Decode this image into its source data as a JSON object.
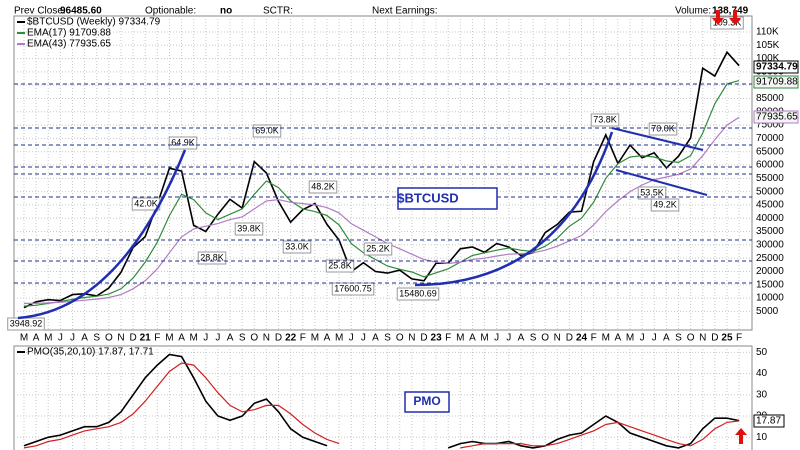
{
  "header": {
    "prev_close_label": "Prev Close:",
    "prev_close": "96485.60",
    "optionable_label": "Optionable:",
    "optionable": "no",
    "sctr_label": "SCTR:",
    "earnings_label": "Next Earnings:",
    "volume_label": "Volume:",
    "volume": "138,749"
  },
  "chart_data": [
    {
      "type": "line",
      "title": "$BTCUSD",
      "categories": [
        "M",
        "A",
        "M",
        "J",
        "J",
        "A",
        "S",
        "O",
        "N",
        "D",
        "21",
        "F",
        "M",
        "A",
        "M",
        "J",
        "J",
        "A",
        "S",
        "O",
        "N",
        "D",
        "22",
        "F",
        "M",
        "A",
        "M",
        "J",
        "J",
        "A",
        "S",
        "O",
        "N",
        "D",
        "23",
        "F",
        "M",
        "A",
        "M",
        "J",
        "J",
        "A",
        "S",
        "O",
        "N",
        "D",
        "24",
        "F",
        "M",
        "A",
        "M",
        "J",
        "J",
        "A",
        "S",
        "O",
        "N",
        "D",
        "25",
        "F"
      ],
      "series": [
        {
          "name": "$BTCUSD (Weekly) 97334.79",
          "tag": "97334.79",
          "color": "#000000",
          "values": [
            6400,
            8600,
            9400,
            9100,
            11300,
            11600,
            10800,
            13800,
            19700,
            29000,
            33100,
            45200,
            58800,
            57700,
            37300,
            35000,
            41500,
            47100,
            43800,
            61300,
            57000,
            46300,
            38500,
            43200,
            45500,
            37700,
            31800,
            19900,
            23300,
            20000,
            19400,
            20500,
            17200,
            16500,
            23100,
            23100,
            28500,
            29200,
            27200,
            30500,
            29200,
            26000,
            27000,
            34600,
            37700,
            42300,
            42600,
            61200,
            71300,
            60600,
            67500,
            62700,
            64600,
            58900,
            63300,
            70200,
            96400,
            93400,
            102400,
            97334.79
          ]
        },
        {
          "name": "EMA(17) 91709.88",
          "tag": "91709.88",
          "color": "#2e8b3a",
          "values": [
            7000,
            7300,
            8000,
            8700,
            9500,
            10200,
            10700,
            11500,
            13500,
            17500,
            23500,
            31000,
            41000,
            49000,
            47000,
            42000,
            39500,
            41500,
            43500,
            49000,
            54000,
            51500,
            46500,
            43500,
            42500,
            41000,
            37500,
            30500,
            27000,
            24500,
            22000,
            20800,
            19800,
            18000,
            19500,
            21000,
            23500,
            26000,
            27000,
            28000,
            28800,
            28000,
            27500,
            29500,
            32500,
            37000,
            40000,
            46000,
            55000,
            60500,
            63000,
            63500,
            63000,
            61500,
            61000,
            63500,
            72000,
            83000,
            90500,
            91709.88
          ]
        },
        {
          "name": "EMA(43) 77935.65",
          "tag": "77935.65",
          "color": "#b07cc6",
          "values": [
            8000,
            8000,
            8200,
            8400,
            8800,
            9200,
            9600,
            10200,
            11300,
            13500,
            16500,
            21000,
            27000,
            33000,
            36000,
            37000,
            38000,
            39500,
            40500,
            43500,
            46500,
            47000,
            46000,
            45500,
            45000,
            44000,
            42000,
            38000,
            35500,
            33000,
            30500,
            28500,
            26500,
            24500,
            23500,
            23000,
            23500,
            24500,
            25000,
            25800,
            26500,
            26700,
            27000,
            28000,
            29500,
            31500,
            33500,
            37500,
            42500,
            46500,
            50000,
            52500,
            54500,
            55500,
            56500,
            58500,
            63500,
            69500,
            75000,
            77935.65
          ]
        }
      ],
      "ylim": [
        -2000,
        116000
      ],
      "yticks": [
        5000,
        10000,
        15000,
        20000,
        25000,
        30000,
        35000,
        40000,
        45000,
        50000,
        55000,
        60000,
        65000,
        70000,
        75000,
        80000,
        85000,
        90000,
        95000,
        {
          "value": 100000,
          "label": "100K"
        },
        {
          "value": 105000,
          "label": "105K"
        },
        {
          "value": 110000,
          "label": "110K"
        }
      ],
      "grid": true,
      "annotations": [
        "3948.92",
        "42.0K",
        "64.9K",
        "28.8K",
        "39.8K",
        "69.0K",
        "33.0K",
        "48.2K",
        "25.8K",
        "25.2K",
        "17600.75",
        "15480.69",
        "73.8K",
        "70.0K",
        "53.5K",
        "49.2K",
        "109.3K"
      ]
    },
    {
      "type": "line",
      "title": "PMO",
      "legend": "PMO(35,20,10) 17.87, 17.71",
      "tag": "17.87",
      "series": [
        {
          "color": "#000000",
          "values": [
            6,
            8,
            10,
            11,
            13,
            15,
            15,
            17,
            22,
            30,
            38,
            44,
            49,
            48,
            38,
            27,
            20,
            18,
            20,
            26,
            28,
            22,
            14,
            10,
            8,
            6,
            null,
            null,
            null,
            null,
            null,
            null,
            null,
            null,
            null,
            5,
            7,
            8,
            7,
            7,
            8,
            6,
            5,
            6,
            9,
            11,
            12,
            16,
            20,
            17,
            12,
            10,
            8,
            6,
            5,
            7,
            14,
            19,
            19,
            17.87
          ]
        },
        {
          "color": "#d02020",
          "values": [
            5,
            6,
            8,
            9,
            11,
            13,
            14,
            15,
            17,
            21,
            27,
            34,
            41,
            45,
            44,
            38,
            31,
            25,
            22,
            23,
            25,
            25,
            21,
            16,
            12,
            9,
            7,
            null,
            null,
            null,
            null,
            null,
            null,
            null,
            null,
            null,
            5,
            6,
            7,
            7,
            7,
            7,
            6,
            6,
            7,
            9,
            11,
            13,
            16,
            17,
            15,
            13,
            11,
            9,
            7,
            6,
            9,
            14,
            17,
            17.71
          ]
        }
      ],
      "ylim": [
        4,
        53
      ],
      "yticks": [
        10,
        20,
        30,
        40,
        50
      ],
      "grid": true
    }
  ]
}
